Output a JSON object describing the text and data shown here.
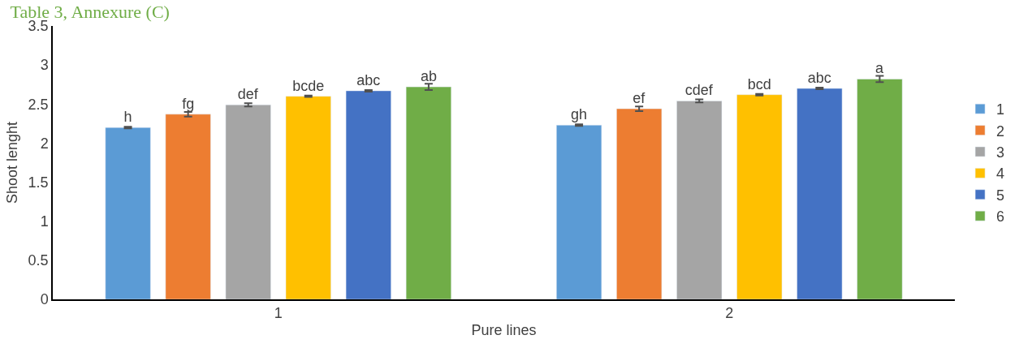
{
  "chart_data": {
    "type": "bar",
    "title": "Table 3, Annexure (C)",
    "xlabel": "Pure lines",
    "ylabel": "Shoot lenght",
    "categories": [
      "1",
      "2"
    ],
    "series": [
      {
        "name": "1",
        "color": "#5b9bd5",
        "values": [
          2.2,
          2.23
        ],
        "errors": [
          0.01,
          0.01
        ],
        "value_labels": [
          "h",
          "gh"
        ]
      },
      {
        "name": "2",
        "color": "#ed7d31",
        "values": [
          2.37,
          2.44
        ],
        "errors": [
          0.03,
          0.03
        ],
        "value_labels": [
          "fg",
          "ef"
        ]
      },
      {
        "name": "3",
        "color": "#a5a5a5",
        "values": [
          2.49,
          2.54
        ],
        "errors": [
          0.02,
          0.02
        ],
        "value_labels": [
          "def",
          "cdef"
        ]
      },
      {
        "name": "4",
        "color": "#ffc000",
        "values": [
          2.6,
          2.62
        ],
        "errors": [
          0.01,
          0.01
        ],
        "value_labels": [
          "bcde",
          "bcd"
        ]
      },
      {
        "name": "5",
        "color": "#4472c4",
        "values": [
          2.67,
          2.7
        ],
        "errors": [
          0.01,
          0.01
        ],
        "value_labels": [
          "abc",
          "abc"
        ]
      },
      {
        "name": "6",
        "color": "#70ad47",
        "values": [
          2.72,
          2.82
        ],
        "errors": [
          0.04,
          0.04
        ],
        "value_labels": [
          "ab",
          "a"
        ]
      }
    ],
    "ylim": [
      0,
      3.5
    ],
    "yticks": [
      0,
      0.5,
      1,
      1.5,
      2,
      2.5,
      3,
      3.5
    ],
    "legend": "right"
  }
}
